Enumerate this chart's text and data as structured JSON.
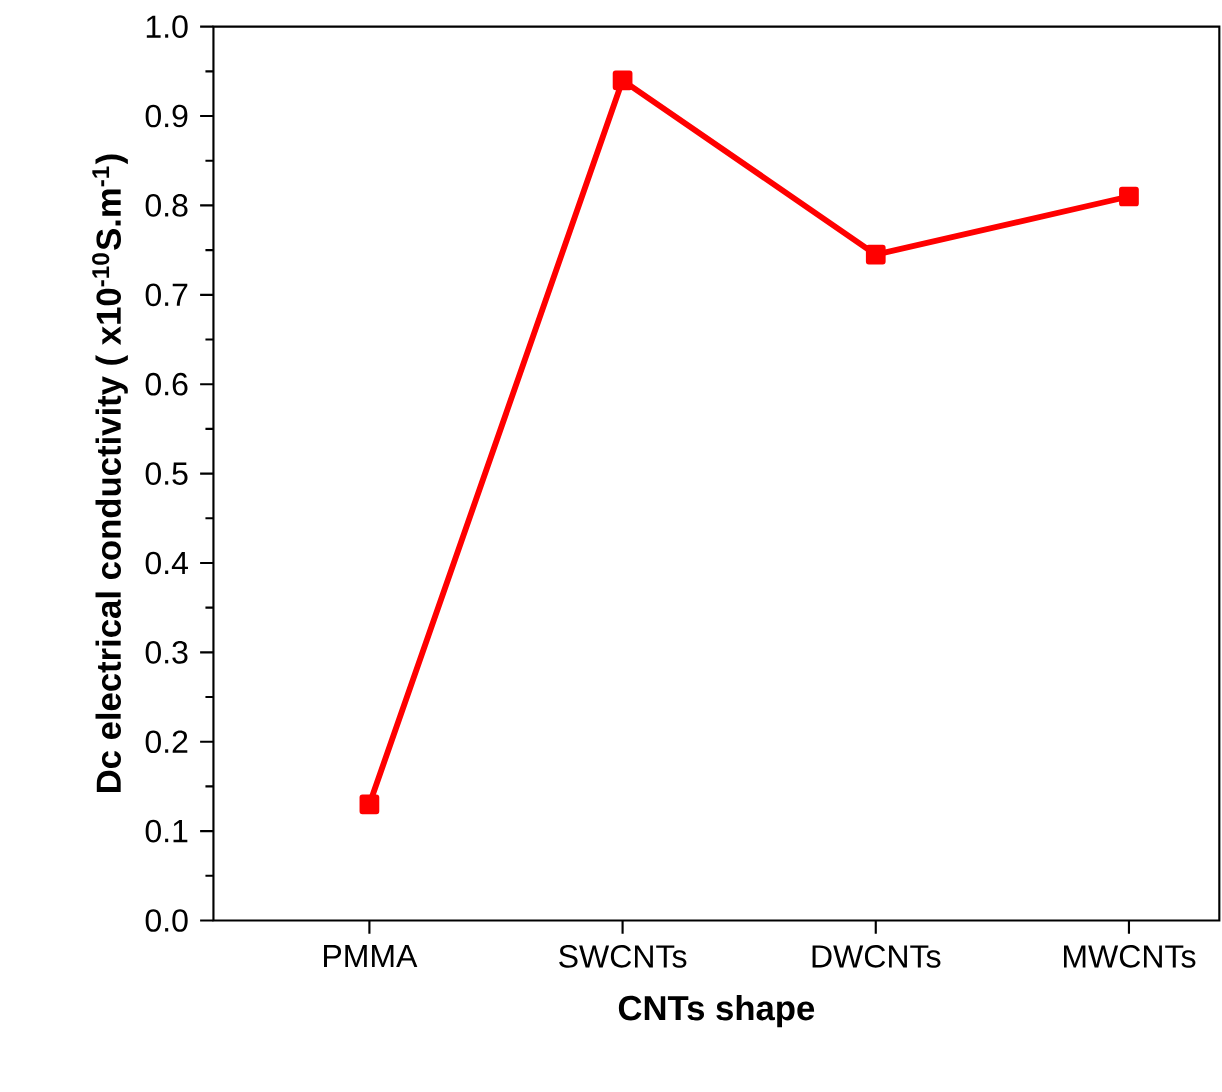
{
  "chart_data": {
    "type": "line",
    "xlabel": "CNTs shape",
    "ylabel": "Dc electrical conductivity ( x10$^{-10}$S.m$^{-1}$)",
    "categories": [
      "PMMA",
      "SWCNTs",
      "DWCNTs",
      "MWCNTs"
    ],
    "series": [
      {
        "color": "#ff0000",
        "values": [
          0.13,
          0.94,
          0.745,
          0.81
        ]
      }
    ],
    "ylim": [
      0.0,
      1.0
    ],
    "yticks": [
      {
        "value": 0,
        "label": "0.0"
      },
      {
        "value": 0.1,
        "label": "0.1"
      },
      {
        "value": 0.2,
        "label": "0.2"
      },
      {
        "value": 0.3,
        "label": "0.3"
      },
      {
        "value": 0.4,
        "label": "0.4"
      },
      {
        "value": 0.5,
        "label": "0.5"
      },
      {
        "value": 0.6,
        "label": "0.6"
      },
      {
        "value": 0.7,
        "label": "0.7"
      },
      {
        "value": 0.8,
        "label": "0.8"
      },
      {
        "value": 0.9,
        "label": "0.9"
      },
      {
        "value": 1.0,
        "label": "1.0"
      }
    ],
    "marker": "square",
    "line_style": "solid"
  }
}
